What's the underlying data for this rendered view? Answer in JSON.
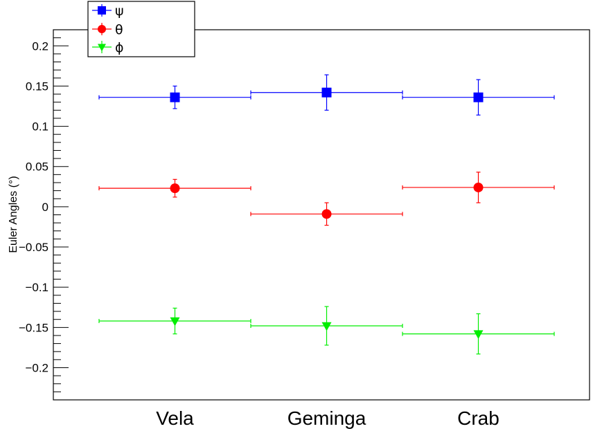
{
  "chart_data": {
    "type": "scatter",
    "categories": [
      "Vela",
      "Geminga",
      "Crab"
    ],
    "ylabel": "Euler Angles (°)",
    "ylim": [
      -0.24,
      0.22
    ],
    "yticks": [
      {
        "v": 0.2,
        "label": "0.2"
      },
      {
        "v": 0.15,
        "label": "0.15"
      },
      {
        "v": 0.1,
        "label": "0.1"
      },
      {
        "v": 0.05,
        "label": "0.05"
      },
      {
        "v": 0,
        "label": "0"
      },
      {
        "v": -0.05,
        "label": "−0.05"
      },
      {
        "v": -0.1,
        "label": "−0.1"
      },
      {
        "v": -0.15,
        "label": "−0.15"
      },
      {
        "v": -0.2,
        "label": "−0.2"
      }
    ],
    "grid": false,
    "legend_position": "top-left",
    "series": [
      {
        "name": "ψ",
        "color": "#0000ff",
        "marker": "square",
        "values": [
          0.136,
          0.142,
          0.136
        ],
        "errors": [
          0.014,
          0.022,
          0.022
        ]
      },
      {
        "name": "θ",
        "color": "#ff0000",
        "marker": "circle",
        "values": [
          0.023,
          -0.009,
          0.024
        ],
        "errors": [
          0.011,
          0.014,
          0.019
        ]
      },
      {
        "name": "ϕ",
        "color": "#00ee00",
        "marker": "triangle-down",
        "values": [
          -0.142,
          -0.148,
          -0.158
        ],
        "errors": [
          0.016,
          0.024,
          0.025
        ]
      }
    ]
  }
}
